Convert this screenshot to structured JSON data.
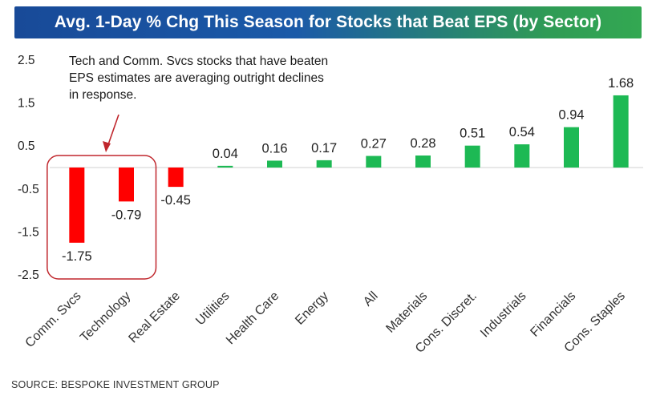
{
  "title": "Avg. 1-Day % Chg This Season for Stocks that Beat EPS (by Sector)",
  "annotation": "Tech and Comm. Svcs stocks that have beaten EPS estimates are averaging outright declines in response.",
  "source": "SOURCE: BESPOKE INVESTMENT GROUP",
  "colors": {
    "positive": "#1db954",
    "negative": "#ff0000",
    "callout": "#c0272d",
    "title_bg_start": "#184a98",
    "title_bg_end": "#33a852"
  },
  "chart_data": {
    "type": "bar",
    "categories": [
      "Comm. Svcs",
      "Technology",
      "Real Estate",
      "Utilities",
      "Health Care",
      "Energy",
      "All",
      "Materials",
      "Cons. Discret.",
      "Industrials",
      "Financials",
      "Cons. Staples"
    ],
    "values": [
      -1.75,
      -0.79,
      -0.45,
      0.04,
      0.16,
      0.17,
      0.27,
      0.28,
      0.51,
      0.54,
      0.94,
      1.68
    ],
    "value_labels": [
      "-1.75",
      "-0.79",
      "-0.45",
      "0.04",
      "0.16",
      "0.17",
      "0.27",
      "0.28",
      "0.51",
      "0.54",
      "0.94",
      "1.68"
    ],
    "yticks": [
      "2.5",
      "1.5",
      "0.5",
      "-0.5",
      "-1.5",
      "-2.5"
    ],
    "ylim": [
      -2.5,
      2.5
    ],
    "grid": false,
    "legend": "none",
    "highlight": [
      "Comm. Svcs",
      "Technology"
    ]
  }
}
